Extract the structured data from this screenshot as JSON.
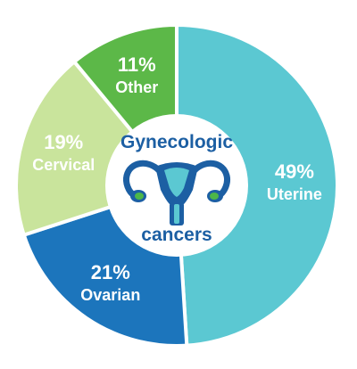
{
  "chart_data": {
    "type": "pie",
    "donut": true,
    "categories": [
      "Uterine",
      "Ovarian",
      "Cervical",
      "Other"
    ],
    "values": [
      49,
      21,
      19,
      11
    ],
    "value_labels": [
      "49%",
      "21%",
      "19%",
      "11%"
    ],
    "colors": [
      "#5bc8d2",
      "#1c75bc",
      "#c9e49c",
      "#5cb848"
    ],
    "start_angle_deg": 0,
    "direction": "clockwise"
  },
  "center": {
    "title_line1": "Gynecologic",
    "title_line2": "cancers",
    "icon": "uterus-icon",
    "icon_colors": {
      "body": "#1c5fa3",
      "accent": "#5bc8d2",
      "ovary": "#4cb748"
    }
  }
}
